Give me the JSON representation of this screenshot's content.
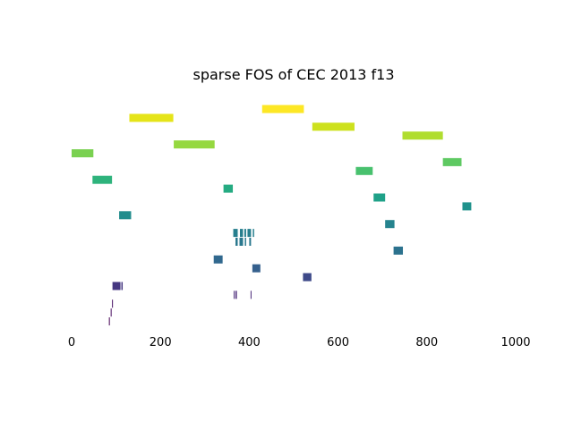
{
  "chart_data": {
    "type": "bar",
    "title": "sparse FOS of CEC 2013 f13",
    "xlabel": "",
    "ylabel": "",
    "xlim": [
      -8,
      1000
    ],
    "x_ticks": [
      "0",
      "200",
      "400",
      "600",
      "800",
      "1000"
    ],
    "x_tick_values": [
      0,
      200,
      400,
      600,
      800,
      1000
    ],
    "y_axis_visible": false,
    "grid": false,
    "legend": "none",
    "colormap": "viridis",
    "rows": [
      {
        "segments": [
          [
            429,
            523
          ]
        ],
        "color": "#fde725"
      },
      {
        "segments": [
          [
            130,
            229
          ]
        ],
        "color": "#e5e419"
      },
      {
        "segments": [
          [
            542,
            637
          ]
        ],
        "color": "#cde11d"
      },
      {
        "segments": [
          [
            745,
            836
          ]
        ],
        "color": "#b0dd2f"
      },
      {
        "segments": [
          [
            230,
            322
          ]
        ],
        "color": "#95d840"
      },
      {
        "segments": [
          [
            0,
            49
          ]
        ],
        "color": "#7ad151"
      },
      {
        "segments": [
          [
            836,
            878
          ]
        ],
        "color": "#5ec962"
      },
      {
        "segments": [
          [
            640,
            678
          ]
        ],
        "color": "#48c16e"
      },
      {
        "segments": [
          [
            47,
            91
          ]
        ],
        "color": "#2eb37c"
      },
      {
        "segments": [
          [
            342,
            363
          ]
        ],
        "color": "#25ab82"
      },
      {
        "segments": [
          [
            680,
            706
          ]
        ],
        "color": "#1fa188"
      },
      {
        "segments": [
          [
            880,
            900
          ]
        ],
        "color": "#20928c"
      },
      {
        "segments": [
          [
            107,
            134
          ]
        ],
        "color": "#228d8d"
      },
      {
        "segments": [
          [
            706,
            727
          ]
        ],
        "color": "#25838e"
      },
      {
        "segments": [
          [
            364,
            374
          ],
          [
            379,
            386
          ],
          [
            389,
            393
          ],
          [
            396,
            404
          ],
          [
            408,
            411
          ]
        ],
        "color": "#277f8e"
      },
      {
        "segments": [
          [
            369,
            374
          ],
          [
            378,
            386
          ],
          [
            390,
            393
          ],
          [
            400,
            404
          ]
        ],
        "color": "#2a788e"
      },
      {
        "segments": [
          [
            725,
            746
          ]
        ],
        "color": "#2c728e"
      },
      {
        "segments": [
          [
            320,
            340
          ]
        ],
        "color": "#31688e"
      },
      {
        "segments": [
          [
            407,
            425
          ]
        ],
        "color": "#35608d"
      },
      {
        "segments": [
          [
            521,
            540
          ]
        ],
        "color": "#3e4a89"
      },
      {
        "segments": [
          [
            92,
            110
          ],
          [
            112,
            115
          ]
        ],
        "color": "#453781"
      },
      {
        "segments": [
          [
            365,
            366
          ],
          [
            369,
            372
          ],
          [
            403,
            405
          ]
        ],
        "color": "#482677"
      },
      {
        "segments": [
          [
            91,
            93
          ]
        ],
        "color": "#471164"
      },
      {
        "segments": [
          [
            88,
            90
          ]
        ],
        "color": "#460a5d"
      },
      {
        "segments": [
          [
            84,
            86
          ]
        ],
        "color": "#440154"
      }
    ]
  }
}
